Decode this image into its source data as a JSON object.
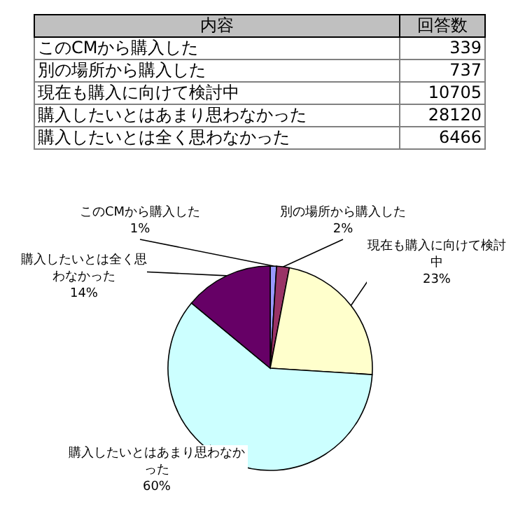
{
  "chart_data": [
    {
      "type": "other",
      "categories": [
        "このCMから購入した",
        "別の場所から購入した",
        "現在も購入に向けて検討中",
        "購入したいとはあまり思わなかった",
        "購入したいとは全く思わなかった"
      ],
      "values": [
        339,
        737,
        10705,
        28120,
        6466
      ],
      "annotations": [
        "内容",
        "回答数"
      ],
      "data_labels": true
    },
    {
      "type": "pie",
      "categories": [
        "このCMから購入した",
        "別の場所から購入した",
        "現在も購入に向けて検討中",
        "購入したいとはあまり思わなかった",
        "購入したいとは全く思わなかった"
      ],
      "values": [
        1,
        2,
        23,
        60,
        14
      ],
      "colors": [
        "#9999ff",
        "#993366",
        "#ffffcc",
        "#ccffff",
        "#660066"
      ],
      "value_labels": [
        "1%",
        "2%",
        "23%",
        "60%",
        "14%"
      ]
    }
  ]
}
